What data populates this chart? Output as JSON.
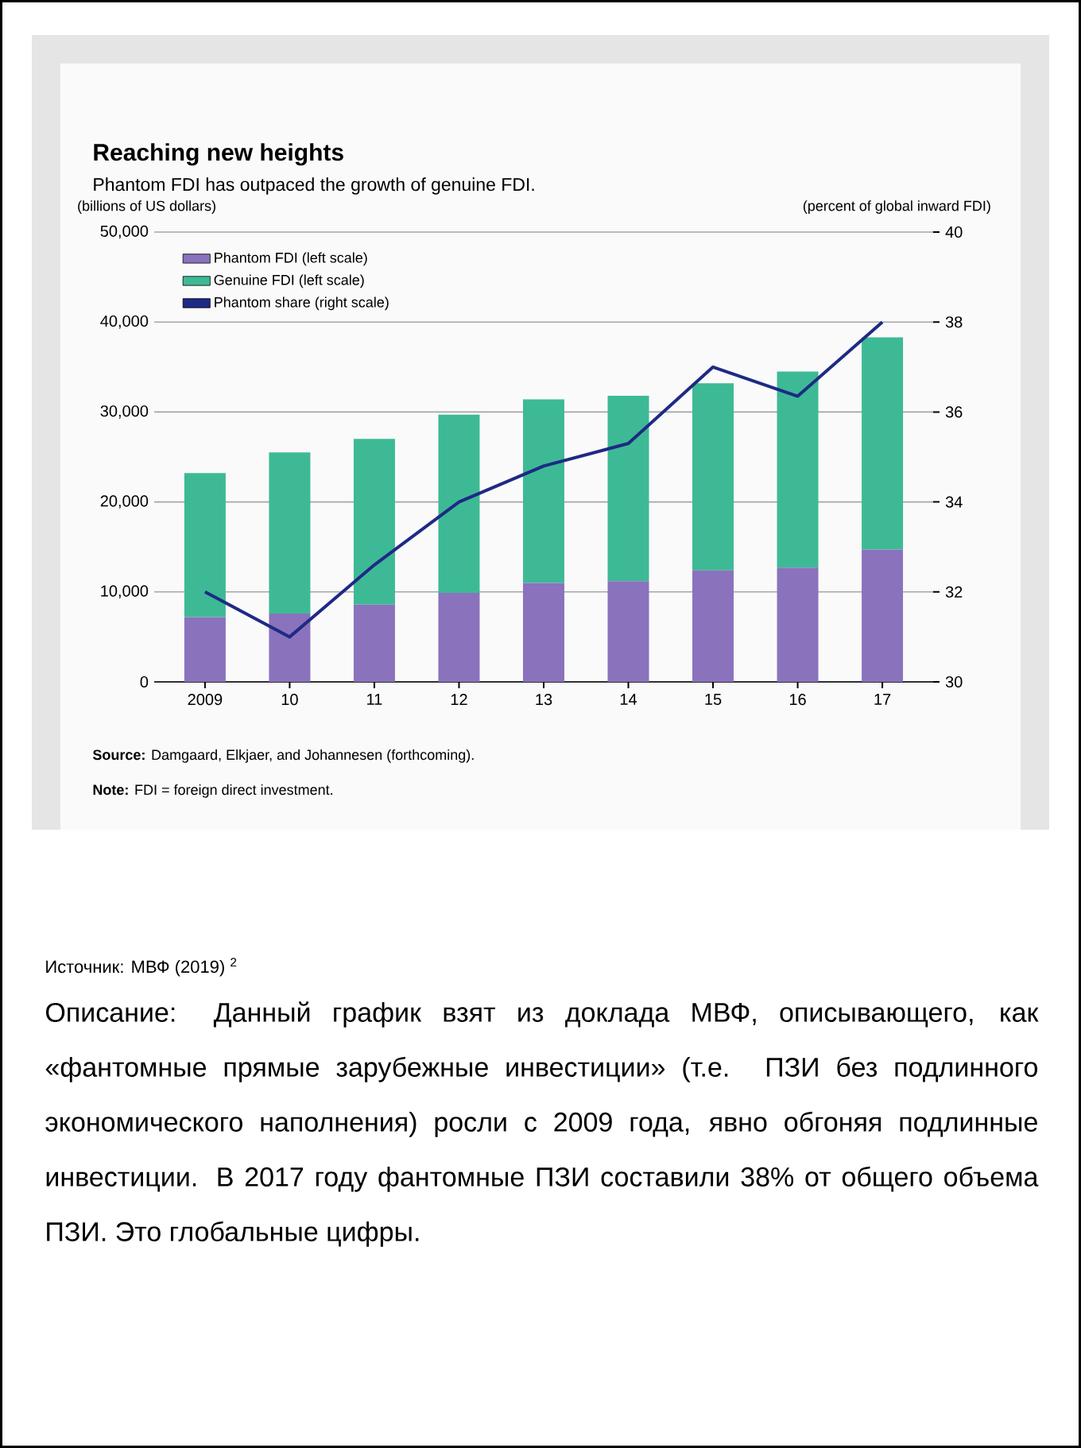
{
  "chart_data": {
    "type": "bar",
    "title": "Reaching new heights",
    "subtitle": "Phantom FDI has outpaced the growth of genuine FDI.",
    "ylabel": "(billions of US dollars)",
    "y2label": "(percent of global inward FDI)",
    "categories": [
      "2009",
      "10",
      "11",
      "12",
      "13",
      "14",
      "15",
      "16",
      "17"
    ],
    "stacked": true,
    "series": [
      {
        "name": "Phantom FDI (left scale)",
        "color": "#8a72bd",
        "values": [
          7200,
          7600,
          8600,
          9900,
          11000,
          11200,
          12400,
          12700,
          14700
        ]
      },
      {
        "name": "Genuine FDI (left scale)",
        "color": "#3dba95",
        "values": [
          16000,
          17900,
          18400,
          19800,
          20400,
          20600,
          20800,
          21800,
          23600
        ]
      },
      {
        "name": "Phantom share (right scale)",
        "type": "line",
        "axis": "y2",
        "color": "#1e2a84",
        "values": [
          32.0,
          31.0,
          32.6,
          34.0,
          34.8,
          35.3,
          37.0,
          36.35,
          38.0
        ]
      }
    ],
    "ylim": [
      0,
      50000
    ],
    "yticks": [
      0,
      {
        "value": 10000,
        "label": "10,000"
      },
      {
        "value": 20000,
        "label": "20,000"
      },
      {
        "value": 30000,
        "label": "30,000"
      },
      {
        "value": 40000,
        "label": "40,000"
      },
      {
        "value": 50000,
        "label": "50,000"
      }
    ],
    "y2lim": [
      30,
      40
    ],
    "y2ticks": [
      30,
      32,
      34,
      36,
      38,
      40
    ],
    "grid": "y",
    "legend": "top left",
    "annotations": [
      "**Source:** Damgaard, Elkjaer, and Johannesen (forthcoming).",
      "**Note:** FDI = foreign direct investment.",
      "Источник: МВФ (2019) $^{2}$",
      "Описание: Данный график взят из доклада МВФ, описывающего, как «фантомные прямые зарубежные инвестиции» (т.е. ПЗИ без подлинного экономического наполнения) росли с 2009 года, явно обгоняя подлинные инвестиции. В 2017 году фантомные ПЗИ составили 38% от общего объема ПЗИ. Это глобальные цифры."
    ]
  }
}
